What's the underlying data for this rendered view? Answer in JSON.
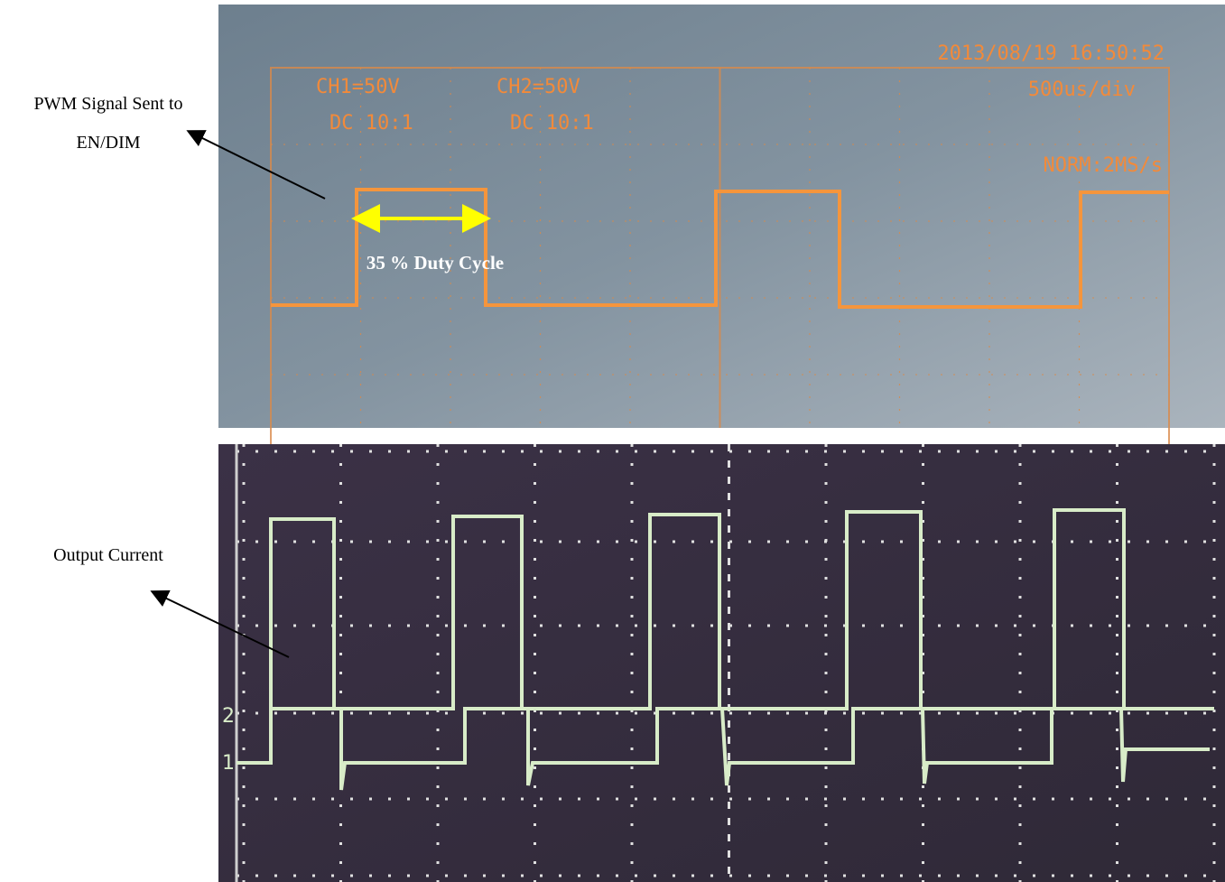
{
  "annotations": {
    "pwm_label": [
      "PWM Signal Sent to",
      "EN/DIM"
    ],
    "current_label": "Output Current",
    "duty_cycle": "35 % Duty Cycle"
  },
  "scope_top": {
    "ch1": "CH1=50V",
    "ch1_coupling": "DC 10:1",
    "ch2": "CH2=50V",
    "ch2_coupling": "DC 10:1",
    "timestamp": "2013/08/19 16:50:52",
    "timebase": "500us/div",
    "mode": "NORM:2MS/s"
  },
  "scope_bottom": {
    "ch2_marker": "2",
    "ch1_marker": "1"
  }
}
